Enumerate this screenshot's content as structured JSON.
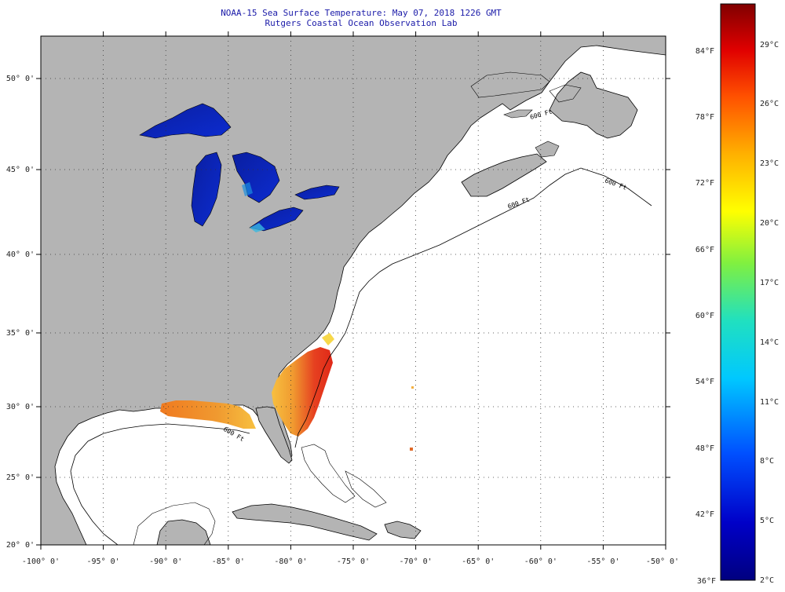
{
  "title": {
    "line1": "NOAA-15 Sea Surface Temperature:  May 07, 2018 1226 GMT",
    "line2": "Rutgers Coastal Ocean Observation Lab"
  },
  "axes": {
    "x_ticks": [
      "-100° 0'",
      "-95° 0'",
      "-90° 0'",
      "-85° 0'",
      "-80° 0'",
      "-75° 0'",
      "-70° 0'",
      "-65° 0'",
      "-60° 0'",
      "-55° 0'",
      "-50° 0'"
    ],
    "y_ticks": [
      "50° 0'",
      "45° 0'",
      "40° 0'",
      "35° 0'",
      "30° 0'",
      "25° 0'",
      "20° 0'"
    ]
  },
  "colorbar": {
    "fahrenheit_labels": [
      "84°F",
      "78°F",
      "72°F",
      "66°F",
      "60°F",
      "54°F",
      "48°F",
      "42°F",
      "36°F"
    ],
    "celsius_labels": [
      "29°C",
      "26°C",
      "23°C",
      "20°C",
      "17°C",
      "14°C",
      "11°C",
      "8°C",
      "5°C",
      "2°C"
    ]
  },
  "colors": {
    "land": "#b4b4b4",
    "ocean_no_data": "#ffffff",
    "title_text": "#1a1aa8",
    "grid": "#333333"
  },
  "contour_labels": [
    "600 Ft",
    "600 Ft",
    "600 Ft",
    "600 Ft"
  ]
}
